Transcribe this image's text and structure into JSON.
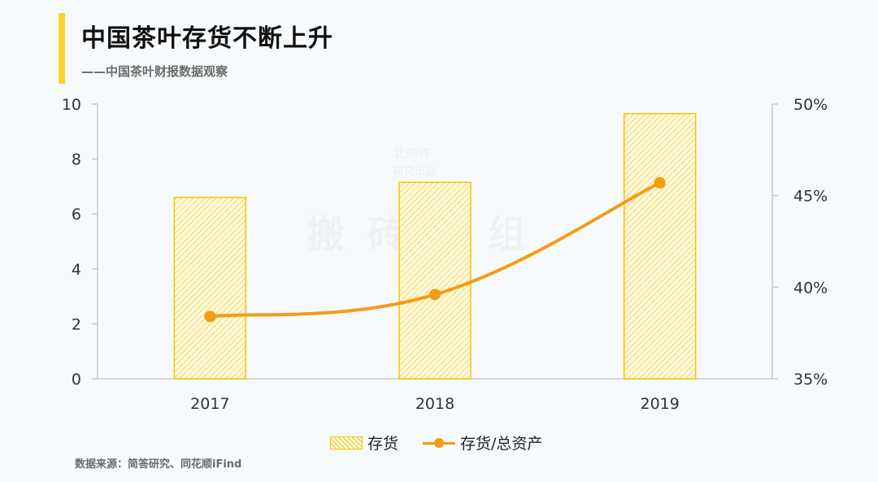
{
  "header": {
    "title": "中国茶叶存货不断上升",
    "subtitle": "——中国茶叶财报数据观察"
  },
  "watermark": {
    "main": "搬砖小组",
    "line1": "北向开",
    "line2": "研究出品"
  },
  "footer": {
    "source": "数据来源：简答研究、同花顺iFind"
  },
  "colors": {
    "accent": "#fdd22e",
    "bar_stroke": "#f5c400",
    "line": "#f39c12",
    "axis": "#c8c8c8"
  },
  "chart_data": {
    "type": "bar",
    "categories": [
      "2017",
      "2018",
      "2019"
    ],
    "series": [
      {
        "name": "存货",
        "type": "bar",
        "axis": "left",
        "values": [
          6.6,
          7.15,
          9.65
        ]
      },
      {
        "name": "存货/总资产",
        "type": "line",
        "axis": "right",
        "values": [
          38.4,
          39.6,
          45.7
        ]
      }
    ],
    "ylim": [
      0,
      10
    ],
    "yticks": [
      "0",
      "2",
      "4",
      "6",
      "8",
      "10"
    ],
    "y2lim": [
      35,
      50
    ],
    "y2ticks": [
      "35%",
      "40%",
      "45%",
      "50%"
    ],
    "xlabel": "",
    "ylabel": "",
    "y2label": "",
    "grid": false,
    "legend_position": "bottom"
  }
}
